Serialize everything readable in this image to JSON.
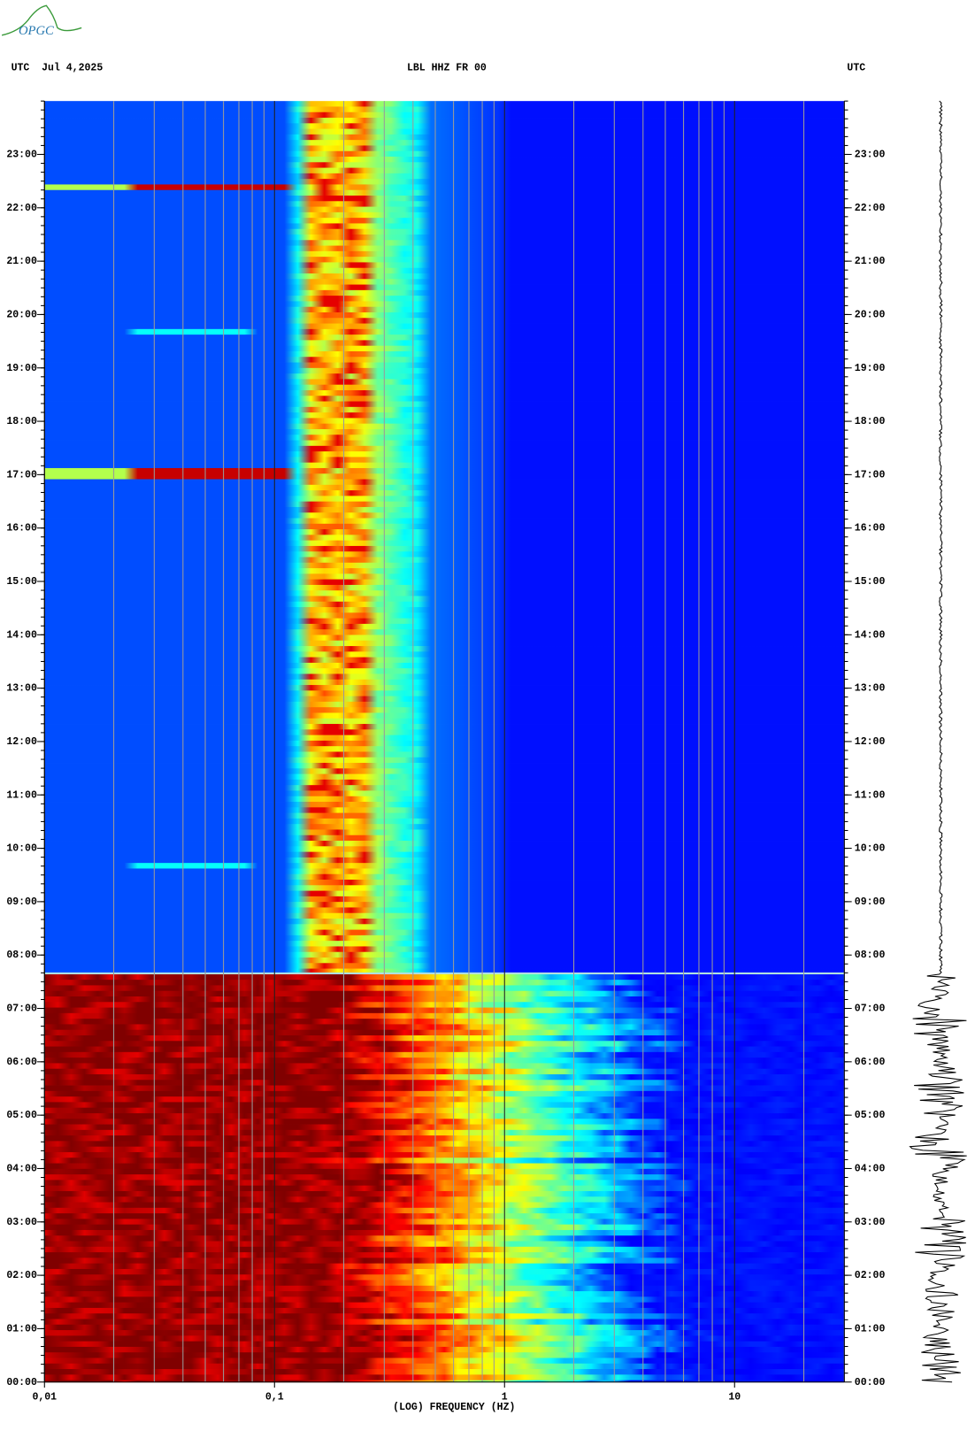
{
  "header": {
    "logo": "OPGC",
    "date": "UTC  Jul 4,2025",
    "timezone": "UTC"
  },
  "chart_data": {
    "type": "spectrogram",
    "title": "LBL HHZ FR 00",
    "x_label": "(LOG) FREQUENCY (HZ)",
    "x_log_scale": true,
    "xlim": [
      0.01,
      30
    ],
    "xticks": [
      {
        "value": 0.01,
        "label": "0,01"
      },
      {
        "value": 0.1,
        "label": "0,1"
      },
      1,
      10
    ],
    "ylim": [
      0,
      24
    ],
    "yticks": [
      {
        "value": 0,
        "label": "00:00"
      },
      {
        "value": 1,
        "label": "01:00"
      },
      {
        "value": 2,
        "label": "02:00"
      },
      {
        "value": 3,
        "label": "03:00"
      },
      {
        "value": 4,
        "label": "04:00"
      },
      {
        "value": 5,
        "label": "05:00"
      },
      {
        "value": 6,
        "label": "06:00"
      },
      {
        "value": 7,
        "label": "07:00"
      },
      {
        "value": 8,
        "label": "08:00"
      },
      {
        "value": 9,
        "label": "09:00"
      },
      {
        "value": 10,
        "label": "10:00"
      },
      {
        "value": 11,
        "label": "11:00"
      },
      {
        "value": 12,
        "label": "12:00"
      },
      {
        "value": 13,
        "label": "13:00"
      },
      {
        "value": 14,
        "label": "14:00"
      },
      {
        "value": 15,
        "label": "15:00"
      },
      {
        "value": 16,
        "label": "16:00"
      },
      {
        "value": 17,
        "label": "17:00"
      },
      {
        "value": 18,
        "label": "18:00"
      },
      {
        "value": 19,
        "label": "19:00"
      },
      {
        "value": 20,
        "label": "20:00"
      },
      {
        "value": 21,
        "label": "21:00"
      },
      {
        "value": 22,
        "label": "22:00"
      },
      {
        "value": 23,
        "label": "23:00"
      }
    ],
    "grid": true,
    "colormap": "jet"
  }
}
